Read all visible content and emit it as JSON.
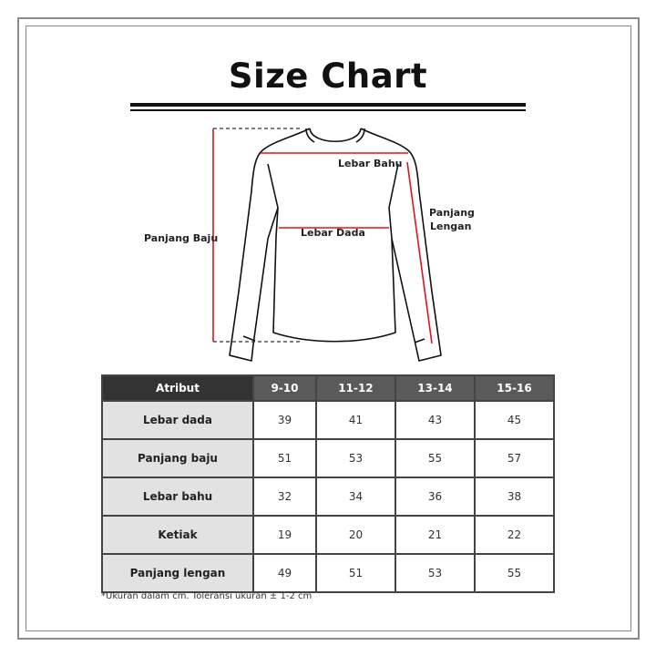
{
  "title": "Size Chart",
  "diagram": {
    "labels": {
      "lebar_bahu": "Lebar Bahu",
      "lebar_dada": "Lebar Dada",
      "panjang_baju": "Panjang Baju",
      "panjang_lengan_1": "Panjang",
      "panjang_lengan_2": "Lengan"
    },
    "measure_color": "#e0141e"
  },
  "table": {
    "headers": [
      "Atribut",
      "9-10",
      "11-12",
      "13-14",
      "15-16"
    ],
    "rows": [
      {
        "label": "Lebar dada",
        "values": [
          "39",
          "41",
          "43",
          "45"
        ]
      },
      {
        "label": "Panjang baju",
        "values": [
          "51",
          "53",
          "55",
          "57"
        ]
      },
      {
        "label": "Lebar bahu",
        "values": [
          "32",
          "34",
          "36",
          "38"
        ]
      },
      {
        "label": "Ketiak",
        "values": [
          "19",
          "20",
          "21",
          "22"
        ]
      },
      {
        "label": "Panjang lengan",
        "values": [
          "49",
          "51",
          "53",
          "55"
        ]
      }
    ]
  },
  "note": "*Ukuran dalam cm. Toleransi ukuran ± 1-2 cm"
}
